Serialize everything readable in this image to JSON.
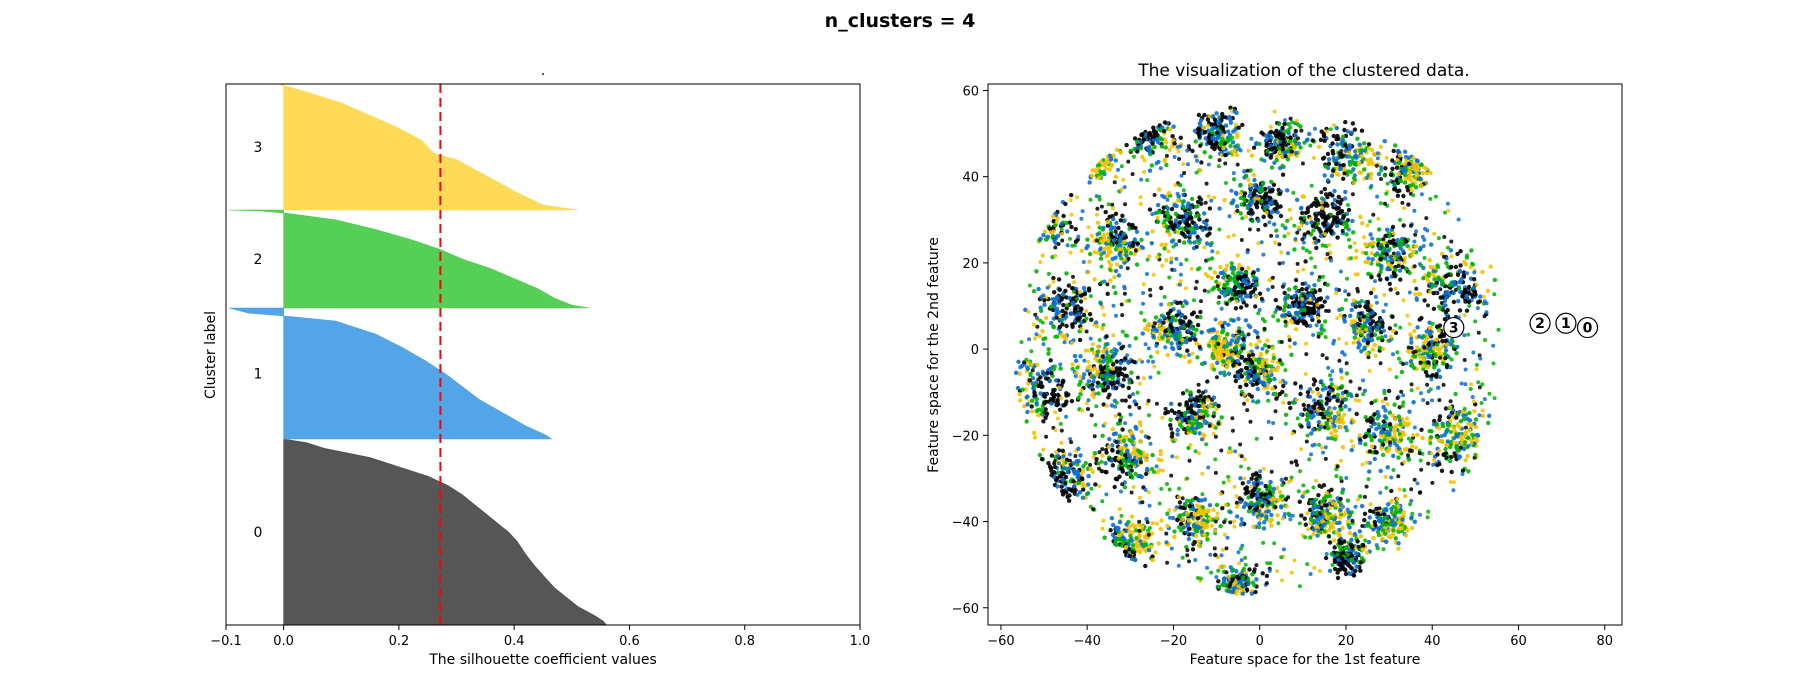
{
  "figure": {
    "suptitle": "n_clusters = 4"
  },
  "chart_data": [
    {
      "type": "area",
      "subtype": "silhouette",
      "title": ".",
      "xlabel": "The silhouette coefficient values",
      "ylabel": "Cluster label",
      "xlim": [
        -0.1,
        1.0
      ],
      "xticks": [
        -0.1,
        0.0,
        0.2,
        0.4,
        0.6,
        0.8,
        1.0
      ],
      "xtick_labels": [
        "−0.1",
        "0.0",
        "0.2",
        "0.4",
        "0.6",
        "0.8",
        "1.0"
      ],
      "average_silhouette": 0.272,
      "colors": {
        "0": "#4d4d4d",
        "1": "#4aa0e6",
        "2": "#4dcc4d",
        "3": "#ffd84d",
        "average": "#ff0000"
      },
      "series": [
        {
          "label": "0",
          "profile": [
            [
              0.0,
              0.56
            ],
            [
              0.02,
              0.555
            ],
            [
              0.05,
              0.54
            ],
            [
              0.1,
              0.51
            ],
            [
              0.15,
              0.49
            ],
            [
              0.2,
              0.47
            ],
            [
              0.25,
              0.455
            ],
            [
              0.32,
              0.435
            ],
            [
              0.38,
              0.42
            ],
            [
              0.45,
              0.405
            ],
            [
              0.5,
              0.39
            ],
            [
              0.55,
              0.37
            ],
            [
              0.6,
              0.35
            ],
            [
              0.65,
              0.33
            ],
            [
              0.7,
              0.31
            ],
            [
              0.75,
              0.285
            ],
            [
              0.8,
              0.25
            ],
            [
              0.85,
              0.2
            ],
            [
              0.9,
              0.15
            ],
            [
              0.95,
              0.07
            ],
            [
              0.98,
              0.04
            ],
            [
              1.0,
              0.0
            ]
          ]
        },
        {
          "label": "1",
          "profile": [
            [
              0.0,
              0.465
            ],
            [
              0.03,
              0.455
            ],
            [
              0.1,
              0.42
            ],
            [
              0.2,
              0.38
            ],
            [
              0.3,
              0.34
            ],
            [
              0.4,
              0.31
            ],
            [
              0.5,
              0.28
            ],
            [
              0.6,
              0.245
            ],
            [
              0.7,
              0.205
            ],
            [
              0.8,
              0.16
            ],
            [
              0.9,
              0.09
            ],
            [
              0.94,
              0.0
            ],
            [
              0.96,
              -0.06
            ],
            [
              1.0,
              -0.095
            ]
          ]
        },
        {
          "label": "2",
          "profile": [
            [
              0.0,
              0.53
            ],
            [
              0.03,
              0.5
            ],
            [
              0.1,
              0.47
            ],
            [
              0.2,
              0.44
            ],
            [
              0.3,
              0.4
            ],
            [
              0.4,
              0.36
            ],
            [
              0.5,
              0.31
            ],
            [
              0.6,
              0.27
            ],
            [
              0.7,
              0.22
            ],
            [
              0.8,
              0.16
            ],
            [
              0.9,
              0.09
            ],
            [
              0.97,
              0.0
            ],
            [
              0.99,
              -0.04
            ],
            [
              1.0,
              -0.095
            ]
          ]
        },
        {
          "label": "3",
          "profile": [
            [
              0.0,
              0.51
            ],
            [
              0.04,
              0.45
            ],
            [
              0.15,
              0.4
            ],
            [
              0.3,
              0.34
            ],
            [
              0.4,
              0.3
            ],
            [
              0.45,
              0.26
            ],
            [
              0.55,
              0.24
            ],
            [
              0.65,
              0.2
            ],
            [
              0.75,
              0.15
            ],
            [
              0.85,
              0.1
            ],
            [
              0.95,
              0.03
            ],
            [
              1.0,
              -0.01
            ]
          ]
        }
      ]
    },
    {
      "type": "scatter",
      "title": "The visualization of the clustered data.",
      "xlabel": "Feature space for the 1st feature",
      "ylabel": "Feature space for the 2nd feature",
      "xlim": [
        -63,
        84
      ],
      "ylim": [
        -64,
        61.5
      ],
      "xticks": [
        -60,
        -40,
        -20,
        0,
        20,
        40,
        60,
        80
      ],
      "xtick_labels": [
        "−60",
        "−40",
        "−20",
        "0",
        "20",
        "40",
        "60",
        "80"
      ],
      "yticks": [
        -60,
        -40,
        -20,
        0,
        20,
        40,
        60
      ],
      "ytick_labels": [
        "−60",
        "−40",
        "−20",
        "0",
        "20",
        "40",
        "60"
      ],
      "colors": {
        "0": "#000000",
        "1": "#0a6fd0",
        "2": "#00b300",
        "3": "#f2c200"
      },
      "point_region": {
        "center": [
          0,
          0
        ],
        "radius": 57
      },
      "blobs": [
        [
          -50,
          30,
          6
        ],
        [
          -38,
          45,
          5
        ],
        [
          -25,
          50,
          6
        ],
        [
          -10,
          50,
          5
        ],
        [
          5,
          48,
          4
        ],
        [
          20,
          45,
          6
        ],
        [
          35,
          42,
          5
        ],
        [
          -45,
          10,
          7
        ],
        [
          -33,
          25,
          6
        ],
        [
          -18,
          30,
          6
        ],
        [
          0,
          35,
          5
        ],
        [
          15,
          30,
          6
        ],
        [
          30,
          22,
          6
        ],
        [
          45,
          15,
          7
        ],
        [
          -50,
          -10,
          7
        ],
        [
          -35,
          -5,
          6
        ],
        [
          -20,
          5,
          5
        ],
        [
          -5,
          15,
          5
        ],
        [
          10,
          10,
          5
        ],
        [
          25,
          5,
          5
        ],
        [
          40,
          0,
          6
        ],
        [
          -45,
          -30,
          6
        ],
        [
          -30,
          -25,
          6
        ],
        [
          -15,
          -15,
          5
        ],
        [
          0,
          -5,
          5
        ],
        [
          15,
          -15,
          6
        ],
        [
          30,
          -20,
          6
        ],
        [
          45,
          -20,
          6
        ],
        [
          -30,
          -45,
          5
        ],
        [
          -15,
          -40,
          5
        ],
        [
          0,
          -35,
          5
        ],
        [
          15,
          -38,
          5
        ],
        [
          30,
          -40,
          5
        ],
        [
          -5,
          -55,
          4
        ],
        [
          20,
          -48,
          4
        ],
        [
          -8,
          0,
          5
        ]
      ],
      "centers": [
        {
          "label": "0",
          "x": 76,
          "y": 5
        },
        {
          "label": "1",
          "x": 71,
          "y": 6
        },
        {
          "label": "2",
          "x": 65,
          "y": 6
        },
        {
          "label": "3",
          "x": 45,
          "y": 5
        }
      ]
    }
  ]
}
